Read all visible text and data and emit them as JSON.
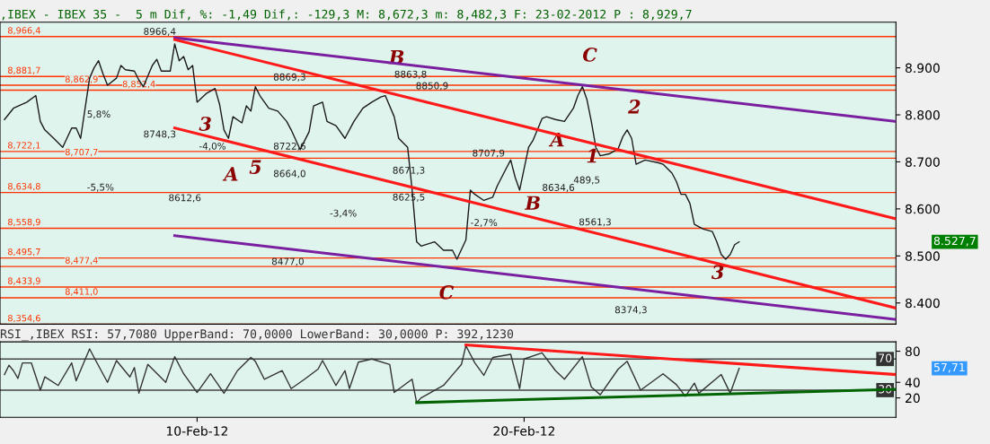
{
  "chart_data": [
    {
      "type": "line",
      "title": ",IBEX - IBEX 35 -  5 m Dif, %: -1,49 Dif,: -129,3 M: 8,672,3 m: 8,482,3 F: 23-02-2012 P : 8,929,7",
      "categories": [
        null,
        null,
        null,
        null,
        null,
        null,
        null,
        null,
        null,
        null,
        null,
        null,
        null,
        null,
        null,
        null,
        null,
        null,
        null,
        null,
        null,
        null,
        null,
        null,
        null,
        null,
        null,
        null,
        null,
        null,
        null,
        null,
        null,
        null,
        null,
        null,
        null,
        null,
        null,
        null,
        null,
        null,
        null,
        null,
        null,
        null,
        null,
        null,
        null,
        null,
        null,
        null,
        null,
        null,
        null,
        null,
        null,
        null,
        null,
        null,
        null,
        null,
        null,
        null,
        null,
        null,
        null,
        null,
        null,
        null,
        null,
        null,
        null,
        null,
        null,
        null,
        null,
        null,
        null,
        null,
        null,
        null,
        null,
        null,
        null,
        null,
        null,
        null,
        null,
        null,
        null,
        null,
        null,
        null,
        null,
        null,
        null,
        null,
        null,
        null,
        null,
        null,
        null,
        null,
        null,
        null,
        null,
        null,
        null,
        null,
        null,
        null,
        null,
        null,
        null,
        null,
        null,
        null,
        null,
        null,
        null,
        null,
        null,
        null,
        null,
        null,
        null,
        null,
        null,
        null,
        null,
        null,
        null,
        null,
        null,
        null,
        null,
        null,
        null,
        null,
        null,
        null,
        null,
        null,
        null,
        null,
        null,
        null,
        null,
        null,
        null,
        null,
        null,
        null,
        null,
        null,
        null,
        null,
        null,
        null,
        null,
        null,
        null,
        null,
        null,
        null,
        null,
        null,
        null,
        null,
        null,
        null,
        null,
        null,
        null,
        null,
        null,
        null,
        null,
        null,
        null,
        null,
        null,
        null,
        null,
        null,
        null,
        null,
        null,
        null,
        null,
        null,
        null,
        null,
        null,
        null,
        null,
        null,
        null,
        null,
        null
      ],
      "series": [
        {
          "color": "#1a1a1a",
          "values": [
            null,
            8790,
            null,
            8814,
            null,
            null,
            8827,
            null,
            8841,
            8786,
            8768,
            null,
            8750,
            null,
            8731,
            null,
            8772,
            8772,
            8750,
            8814,
            8878,
            8900,
            8915,
            8887,
            8863,
            null,
            8878,
            8905,
            8896,
            null,
            8893,
            8874,
            8860,
            null,
            8905,
            8918,
            8893,
            null,
            8893,
            8951,
            8915,
            8924,
            8896,
            8905,
            8827,
            null,
            8845,
            null,
            8856,
            8823,
            8768,
            8750,
            8796,
            null,
            8783,
            8819,
            8808,
            8860,
            8841,
            null,
            8814,
            null,
            8808,
            null,
            8786,
            8768,
            null,
            8726,
            null,
            8764,
            8819,
            null,
            8827,
            8786,
            null,
            8777,
            null,
            8750,
            null,
            8786,
            null,
            8814,
            null,
            8827,
            null,
            8838,
            8841,
            null,
            8796,
            8750,
            null,
            8731,
            8640,
            8530,
            8521,
            null,
            null,
            8530,
            null,
            8512,
            null,
            8512,
            8493,
            null,
            8534,
            8640,
            8631,
            null,
            8618,
            null,
            8625,
            8649,
            null,
            8686,
            8704,
            8667,
            8640,
            null,
            8731,
            8746,
            null,
            8792,
            8796,
            null,
            8790,
            null,
            8786,
            null,
            8814,
            8841,
            8860,
            8833,
            8786,
            8731,
            8713,
            null,
            8717,
            null,
            8728,
            8753,
            8768,
            8750,
            8695,
            null,
            8704,
            null,
            null,
            8698,
            8695,
            null,
            8676,
            8658,
            8631,
            8631,
            8612,
            8567,
            null,
            8557,
            null,
            8552,
            8530,
            8503,
            8493,
            8503,
            8524,
            8530,
            null,
            null,
            null,
            null,
            null,
            null,
            null,
            null,
            null,
            null,
            null,
            null,
            null,
            null,
            null,
            null,
            null,
            null,
            null,
            null,
            null,
            null,
            null,
            null,
            null,
            null,
            null,
            null,
            null,
            null,
            null,
            null,
            null,
            null,
            null
          ]
        },
        {
          "type": "line",
          "color": "#7a1fa0",
          "values": [
            null,
            null,
            null,
            null,
            null,
            null,
            null,
            null,
            null,
            null,
            null,
            null,
            null,
            null,
            null,
            null,
            null,
            null,
            null,
            null,
            null,
            null,
            null,
            null,
            null,
            null,
            null,
            null,
            null,
            null,
            null,
            null,
            null,
            null,
            null,
            null,
            null,
            null,
            null,
            8964,
            null,
            null,
            null,
            null,
            null,
            null,
            null,
            null,
            null,
            null,
            null,
            null,
            null,
            null,
            null,
            null,
            null,
            null,
            null,
            null,
            null,
            null,
            null,
            null,
            null,
            null,
            null,
            null,
            null,
            null,
            null,
            null,
            null,
            null,
            null,
            null,
            null,
            null,
            null,
            null,
            null,
            null,
            null,
            null,
            null,
            null,
            null,
            null,
            null,
            null,
            null,
            null,
            null,
            null,
            null,
            null,
            null,
            null,
            null,
            null,
            null,
            null,
            null,
            null,
            null,
            null,
            null,
            null,
            null,
            null,
            null,
            null,
            null,
            null,
            null,
            null,
            null,
            null,
            null,
            null,
            null,
            null,
            null,
            null,
            null,
            null,
            null,
            null,
            null,
            null,
            null,
            null,
            null,
            null,
            null,
            null,
            null,
            null,
            null,
            null,
            null,
            null,
            null,
            null,
            null,
            null,
            null,
            null,
            null,
            null,
            null,
            null,
            null,
            null,
            null,
            null,
            null,
            null,
            null,
            null,
            null,
            null,
            null,
            null,
            null,
            null,
            null,
            null,
            null,
            null,
            null,
            null,
            null,
            null,
            null,
            null,
            null,
            null,
            null,
            null,
            null,
            null,
            null,
            null,
            null,
            null,
            null,
            null,
            null,
            null,
            null,
            null,
            null,
            null,
            null,
            null,
            null,
            null,
            null,
            null,
            8786
          ]
        },
        {
          "type": "line",
          "color": "#7a1fa0",
          "values": [
            null,
            null,
            null,
            null,
            null,
            null,
            null,
            null,
            null,
            null,
            null,
            null,
            null,
            null,
            null,
            null,
            null,
            null,
            null,
            null,
            null,
            null,
            null,
            null,
            null,
            null,
            null,
            null,
            null,
            null,
            null,
            null,
            null,
            null,
            null,
            null,
            null,
            null,
            null,
            8543,
            null,
            null,
            null,
            null,
            null,
            null,
            null,
            null,
            null,
            null,
            null,
            null,
            null,
            null,
            null,
            null,
            null,
            null,
            null,
            null,
            null,
            null,
            null,
            null,
            null,
            null,
            null,
            null,
            null,
            null,
            null,
            null,
            null,
            null,
            null,
            null,
            null,
            null,
            null,
            null,
            null,
            null,
            null,
            null,
            null,
            null,
            null,
            null,
            null,
            null,
            null,
            null,
            null,
            null,
            null,
            null,
            null,
            null,
            null,
            null,
            null,
            null,
            null,
            null,
            null,
            null,
            null,
            null,
            null,
            null,
            null,
            null,
            null,
            null,
            null,
            null,
            null,
            null,
            null,
            null,
            null,
            null,
            null,
            null,
            null,
            null,
            null,
            null,
            null,
            null,
            null,
            null,
            null,
            null,
            null,
            null,
            null,
            null,
            null,
            null,
            null,
            null,
            null,
            null,
            null,
            null,
            null,
            null,
            null,
            null,
            null,
            null,
            null,
            null,
            null,
            null,
            null,
            null,
            null,
            null,
            null,
            null,
            null,
            null,
            null,
            null,
            null,
            null,
            null,
            null,
            null,
            null,
            null,
            null,
            null,
            null,
            null,
            null,
            null,
            null,
            null,
            null,
            null,
            null,
            null,
            null,
            null,
            null,
            null,
            null,
            null,
            null,
            null,
            null,
            null,
            null,
            null,
            null,
            null,
            null,
            8365
          ]
        },
        {
          "type": "line",
          "color": "#ff1a1a",
          "values": [
            null,
            null,
            null,
            null,
            null,
            null,
            null,
            null,
            null,
            null,
            null,
            null,
            null,
            null,
            null,
            null,
            null,
            null,
            null,
            null,
            null,
            null,
            null,
            null,
            null,
            null,
            null,
            null,
            null,
            null,
            null,
            null,
            null,
            null,
            null,
            null,
            null,
            null,
            null,
            8960,
            null,
            null,
            null,
            null,
            null,
            null,
            null,
            null,
            null,
            null,
            null,
            null,
            null,
            null,
            null,
            null,
            null,
            null,
            null,
            null,
            null,
            null,
            null,
            null,
            null,
            null,
            null,
            null,
            null,
            null,
            null,
            null,
            null,
            null,
            null,
            null,
            null,
            null,
            null,
            null,
            null,
            null,
            null,
            null,
            null,
            null,
            null,
            null,
            null,
            null,
            null,
            null,
            null,
            null,
            null,
            null,
            null,
            null,
            null,
            null,
            null,
            null,
            null,
            null,
            null,
            null,
            null,
            null,
            null,
            null,
            null,
            null,
            null,
            null,
            null,
            null,
            null,
            null,
            null,
            null,
            null,
            null,
            null,
            null,
            null,
            null,
            null,
            null,
            null,
            null,
            null,
            null,
            null,
            null,
            null,
            null,
            null,
            null,
            null,
            null,
            null,
            null,
            null,
            null,
            null,
            null,
            null,
            null,
            null,
            null,
            null,
            null,
            null,
            null,
            null,
            null,
            null,
            null,
            null,
            null,
            null,
            null,
            null,
            null,
            null,
            null,
            null,
            null,
            null,
            null,
            null,
            null,
            null,
            null,
            null,
            null,
            null,
            null,
            null,
            null,
            null,
            null,
            null,
            null,
            null,
            null,
            null,
            null,
            null,
            null,
            null,
            null,
            null,
            null,
            null,
            null,
            null,
            null,
            null,
            null,
            8579
          ]
        },
        {
          "type": "line",
          "color": "#ff1a1a",
          "values": [
            null,
            null,
            null,
            null,
            null,
            null,
            null,
            null,
            null,
            null,
            null,
            null,
            null,
            null,
            null,
            null,
            null,
            null,
            null,
            null,
            null,
            null,
            null,
            null,
            null,
            null,
            null,
            null,
            null,
            null,
            null,
            null,
            null,
            null,
            null,
            null,
            null,
            null,
            null,
            8772,
            null,
            null,
            null,
            null,
            null,
            null,
            null,
            null,
            null,
            null,
            null,
            null,
            null,
            null,
            null,
            null,
            null,
            null,
            null,
            null,
            null,
            null,
            null,
            null,
            null,
            null,
            null,
            null,
            null,
            null,
            null,
            null,
            null,
            null,
            null,
            null,
            null,
            null,
            null,
            null,
            null,
            null,
            null,
            null,
            null,
            null,
            null,
            null,
            null,
            null,
            null,
            null,
            null,
            null,
            null,
            null,
            null,
            null,
            null,
            null,
            null,
            null,
            null,
            null,
            null,
            null,
            null,
            null,
            null,
            null,
            null,
            null,
            null,
            null,
            null,
            null,
            null,
            null,
            null,
            null,
            null,
            null,
            null,
            null,
            null,
            null,
            null,
            null,
            null,
            null,
            null,
            null,
            null,
            null,
            null,
            null,
            null,
            null,
            null,
            null,
            null,
            null,
            null,
            null,
            null,
            null,
            null,
            null,
            null,
            null,
            null,
            null,
            null,
            null,
            null,
            null,
            null,
            null,
            null,
            null,
            null,
            null,
            null,
            null,
            null,
            null,
            null,
            null,
            null,
            null,
            null,
            null,
            null,
            null,
            null,
            null,
            null,
            null,
            null,
            null,
            null,
            null,
            null,
            null,
            null,
            null,
            null,
            null,
            null,
            null,
            null,
            null,
            null,
            null,
            null,
            null,
            null,
            null,
            null,
            null,
            8389
          ]
        }
      ],
      "ylim": [
        8355,
        8997
      ],
      "yticks": [
        {
          "value": 8400,
          "label": "8.400"
        },
        {
          "value": 8500,
          "label": "8.500"
        },
        {
          "value": 8600,
          "label": "8.600"
        },
        {
          "value": 8700,
          "label": "8.700"
        },
        {
          "value": 8800,
          "label": "8.800"
        },
        {
          "value": 8900,
          "label": "8.900"
        }
      ],
      "tick_labels": "y",
      "grid": false,
      "ref_lines": [
        {
          "axis": "y",
          "value": 8966.4,
          "label": "8,966,4",
          "color": "#ff3300"
        },
        {
          "axis": "y",
          "value": 8881.7,
          "label": "8,881,7",
          "color": "#ff3300"
        },
        {
          "axis": "y",
          "value": 8862.9,
          "label": "8,862,9",
          "color": "#ff3300"
        },
        {
          "axis": "y",
          "value": 8852.4,
          "label": "8,852,4",
          "color": "#ff3300"
        },
        {
          "axis": "y",
          "value": 8722.1,
          "label": "8,722,1",
          "color": "#ff3300"
        },
        {
          "axis": "y",
          "value": 8707.7,
          "label": "8,707,7",
          "color": "#ff3300"
        },
        {
          "axis": "y",
          "value": 8634.8,
          "label": "8,634,8",
          "color": "#ff3300"
        },
        {
          "axis": "y",
          "value": 8558.9,
          "label": "8,558,9",
          "color": "#ff3300"
        },
        {
          "axis": "y",
          "value": 8495.7,
          "label": "8,495,7",
          "color": "#ff3300"
        },
        {
          "axis": "y",
          "value": 8477.4,
          "label": "8,477,4",
          "color": "#ff3300"
        },
        {
          "axis": "y",
          "value": 8433.9,
          "label": "8,433,9",
          "color": "#ff3300"
        },
        {
          "axis": "y",
          "value": 8411.0,
          "label": "8,411,0",
          "color": "#ff3300"
        },
        {
          "axis": "y",
          "value": 8354.6,
          "label": "8,354,6",
          "color": "#ff3300"
        }
      ],
      "annotations": [
        "A",
        "B",
        "C",
        "A",
        "B",
        "C",
        "1",
        "2",
        "3",
        "3",
        "5",
        "8966,4",
        "8477,0",
        "8374,3",
        "8561,3",
        "8634,6",
        "8707,9",
        "8850,9",
        "8863,8",
        "8869,3",
        "8722,6",
        "8664,0",
        "8748,3",
        "8612,6",
        "8671,3",
        "8625,5",
        "-5,5%",
        "5,8%",
        "-4,0%",
        "-3,4%",
        "-2,7%",
        "489,5",
        "8.527,7"
      ]
    },
    {
      "type": "line",
      "title": "RSI_,IBEX RSI: 57,7080 UpperBand: 70,0000 LowerBand: 30,0000 P: 392,1230",
      "categories": [
        null,
        null,
        null,
        null,
        null,
        null,
        null,
        null,
        null,
        null,
        null,
        null,
        null,
        null,
        null,
        null,
        null,
        null,
        null,
        null,
        null,
        null,
        null,
        null,
        null,
        null,
        null,
        null,
        null,
        null,
        null,
        null,
        null,
        null,
        null,
        null,
        null,
        null,
        null,
        null,
        null,
        null,
        null,
        null,
        "10-Feb-12",
        null,
        null,
        null,
        null,
        null,
        null,
        null,
        null,
        null,
        null,
        null,
        null,
        null,
        null,
        null,
        null,
        null,
        null,
        null,
        null,
        null,
        null,
        null,
        null,
        null,
        null,
        null,
        null,
        null,
        null,
        null,
        null,
        null,
        null,
        null,
        null,
        null,
        null,
        null,
        null,
        null,
        null,
        null,
        null,
        null,
        null,
        null,
        null,
        null,
        null,
        null,
        null,
        null,
        null,
        null,
        null,
        null,
        null,
        null,
        null,
        null,
        null,
        null,
        null,
        null,
        null,
        null,
        null,
        null,
        null,
        null,
        null,
        "20-Feb-12",
        null,
        null,
        null,
        null,
        null,
        null,
        null,
        null,
        null,
        null,
        null,
        null,
        null,
        null,
        null,
        null,
        null,
        null,
        null,
        null,
        null,
        null,
        null,
        null,
        null,
        null,
        null,
        null,
        null,
        null,
        null,
        null,
        null,
        null,
        null,
        null,
        null,
        null,
        null,
        null,
        null,
        null,
        null,
        null,
        null,
        null,
        null,
        null,
        null,
        null,
        null,
        null,
        null,
        null,
        null,
        null,
        null,
        null,
        null,
        null,
        null,
        null,
        null,
        null,
        null,
        null,
        null,
        null,
        null,
        null,
        null,
        null,
        null,
        null,
        null,
        null,
        null,
        null,
        null,
        null,
        null,
        null,
        null
      ],
      "series": [
        {
          "color": "#333333",
          "values": [
            null,
            50,
            62,
            55,
            45,
            65,
            null,
            65,
            null,
            30,
            47,
            null,
            null,
            36,
            null,
            null,
            65,
            42,
            null,
            null,
            83,
            72,
            null,
            null,
            40,
            null,
            68,
            null,
            null,
            47,
            59,
            26,
            null,
            63,
            null,
            null,
            null,
            40,
            null,
            73,
            null,
            51,
            null,
            null,
            27,
            null,
            null,
            51,
            null,
            null,
            26,
            null,
            null,
            55,
            null,
            null,
            72,
            67,
            null,
            44,
            null,
            null,
            null,
            55,
            null,
            32,
            null,
            null,
            44,
            null,
            null,
            57,
            68,
            null,
            null,
            36,
            null,
            55,
            32,
            null,
            66,
            null,
            null,
            70,
            null,
            null,
            null,
            63,
            27,
            null,
            null,
            null,
            44,
            14,
            20,
            null,
            null,
            null,
            null,
            36,
            null,
            null,
            null,
            63,
            87,
            null,
            65,
            null,
            49,
            null,
            72,
            null,
            null,
            null,
            76,
            null,
            32,
            70,
            null,
            null,
            null,
            78,
            null,
            null,
            55,
            null,
            44,
            null,
            null,
            null,
            73,
            null,
            34,
            null,
            24,
            null,
            null,
            null,
            57,
            null,
            67,
            null,
            null,
            30,
            null,
            null,
            null,
            null,
            51,
            null,
            null,
            37,
            null,
            22,
            null,
            39,
            26,
            null,
            null,
            null,
            null,
            50,
            null,
            26,
            null,
            58,
            null,
            null,
            null,
            null,
            null,
            null,
            null,
            null,
            null,
            null,
            null,
            null,
            null,
            null,
            null,
            null,
            null,
            null,
            null,
            null,
            null,
            null,
            null,
            null,
            null,
            null,
            null,
            null,
            null,
            null,
            null,
            null,
            null,
            null,
            null
          ]
        },
        {
          "type": "line",
          "color": "#ff1a1a",
          "values": [
            null,
            null,
            null,
            null,
            null,
            null,
            null,
            null,
            null,
            null,
            null,
            null,
            null,
            null,
            null,
            null,
            null,
            null,
            null,
            null,
            null,
            null,
            null,
            null,
            null,
            null,
            null,
            null,
            null,
            null,
            null,
            null,
            null,
            null,
            null,
            null,
            null,
            null,
            null,
            null,
            null,
            null,
            null,
            null,
            null,
            null,
            null,
            null,
            null,
            null,
            null,
            null,
            null,
            null,
            null,
            null,
            null,
            null,
            null,
            null,
            null,
            null,
            null,
            null,
            null,
            null,
            null,
            null,
            null,
            null,
            null,
            null,
            null,
            null,
            null,
            null,
            null,
            null,
            null,
            null,
            null,
            null,
            null,
            null,
            null,
            null,
            null,
            null,
            null,
            null,
            null,
            null,
            null,
            null,
            null,
            null,
            null,
            null,
            null,
            null,
            null,
            null,
            null,
            null,
            88,
            null,
            null,
            null,
            null,
            null,
            null,
            null,
            null,
            null,
            null,
            null,
            null,
            null,
            null,
            null,
            null,
            null,
            null,
            null,
            null,
            null,
            null,
            null,
            null,
            null,
            null,
            null,
            null,
            null,
            null,
            null,
            null,
            null,
            null,
            null,
            null,
            null,
            null,
            null,
            null,
            null,
            null,
            null,
            null,
            null,
            null,
            null,
            null,
            null,
            null,
            null,
            null,
            null,
            null,
            null,
            null,
            null,
            null,
            null,
            null,
            null,
            null,
            null,
            null,
            null,
            null,
            null,
            null,
            null,
            null,
            null,
            null,
            null,
            null,
            null,
            null,
            null,
            null,
            null,
            null,
            null,
            null,
            null,
            null,
            null,
            null,
            null,
            null,
            null,
            null,
            null,
            null,
            null,
            null,
            null,
            50
          ]
        },
        {
          "type": "line",
          "color": "#006400",
          "values": [
            null,
            null,
            null,
            null,
            null,
            null,
            null,
            null,
            null,
            null,
            null,
            null,
            null,
            null,
            null,
            null,
            null,
            null,
            null,
            null,
            null,
            null,
            null,
            null,
            null,
            null,
            null,
            null,
            null,
            null,
            null,
            null,
            null,
            null,
            null,
            null,
            null,
            null,
            null,
            null,
            null,
            null,
            null,
            null,
            null,
            null,
            null,
            null,
            null,
            null,
            null,
            null,
            null,
            null,
            null,
            null,
            null,
            null,
            null,
            null,
            null,
            null,
            null,
            null,
            null,
            null,
            null,
            null,
            null,
            null,
            null,
            null,
            null,
            null,
            null,
            null,
            null,
            null,
            null,
            null,
            null,
            null,
            null,
            null,
            null,
            null,
            null,
            null,
            null,
            null,
            null,
            null,
            null,
            14,
            null,
            null,
            null,
            null,
            null,
            null,
            null,
            null,
            null,
            null,
            null,
            null,
            null,
            null,
            null,
            null,
            null,
            null,
            null,
            null,
            null,
            null,
            null,
            null,
            null,
            null,
            null,
            null,
            null,
            null,
            null,
            null,
            null,
            null,
            null,
            null,
            null,
            null,
            null,
            null,
            null,
            null,
            null,
            null,
            null,
            null,
            null,
            null,
            null,
            null,
            null,
            null,
            null,
            null,
            null,
            null,
            null,
            null,
            null,
            null,
            null,
            null,
            null,
            null,
            null,
            null,
            null,
            null,
            null,
            null,
            null,
            null,
            null,
            null,
            null,
            null,
            null,
            null,
            null,
            null,
            null,
            null,
            null,
            null,
            null,
            null,
            null,
            null,
            null,
            null,
            null,
            null,
            null,
            null,
            null,
            null,
            null,
            null,
            null,
            null,
            null,
            null,
            null,
            null,
            null,
            null,
            31
          ]
        }
      ],
      "ylim": [
        -5,
        92
      ],
      "yticks": [
        20,
        40,
        80
      ],
      "grid": false,
      "ref_lines": [
        {
          "axis": "y",
          "value": 70,
          "label": "70",
          "color": "#444444"
        },
        {
          "axis": "y",
          "value": 30,
          "label": "30",
          "color": "#444444"
        }
      ],
      "annotations": [
        "57,71"
      ]
    }
  ]
}
